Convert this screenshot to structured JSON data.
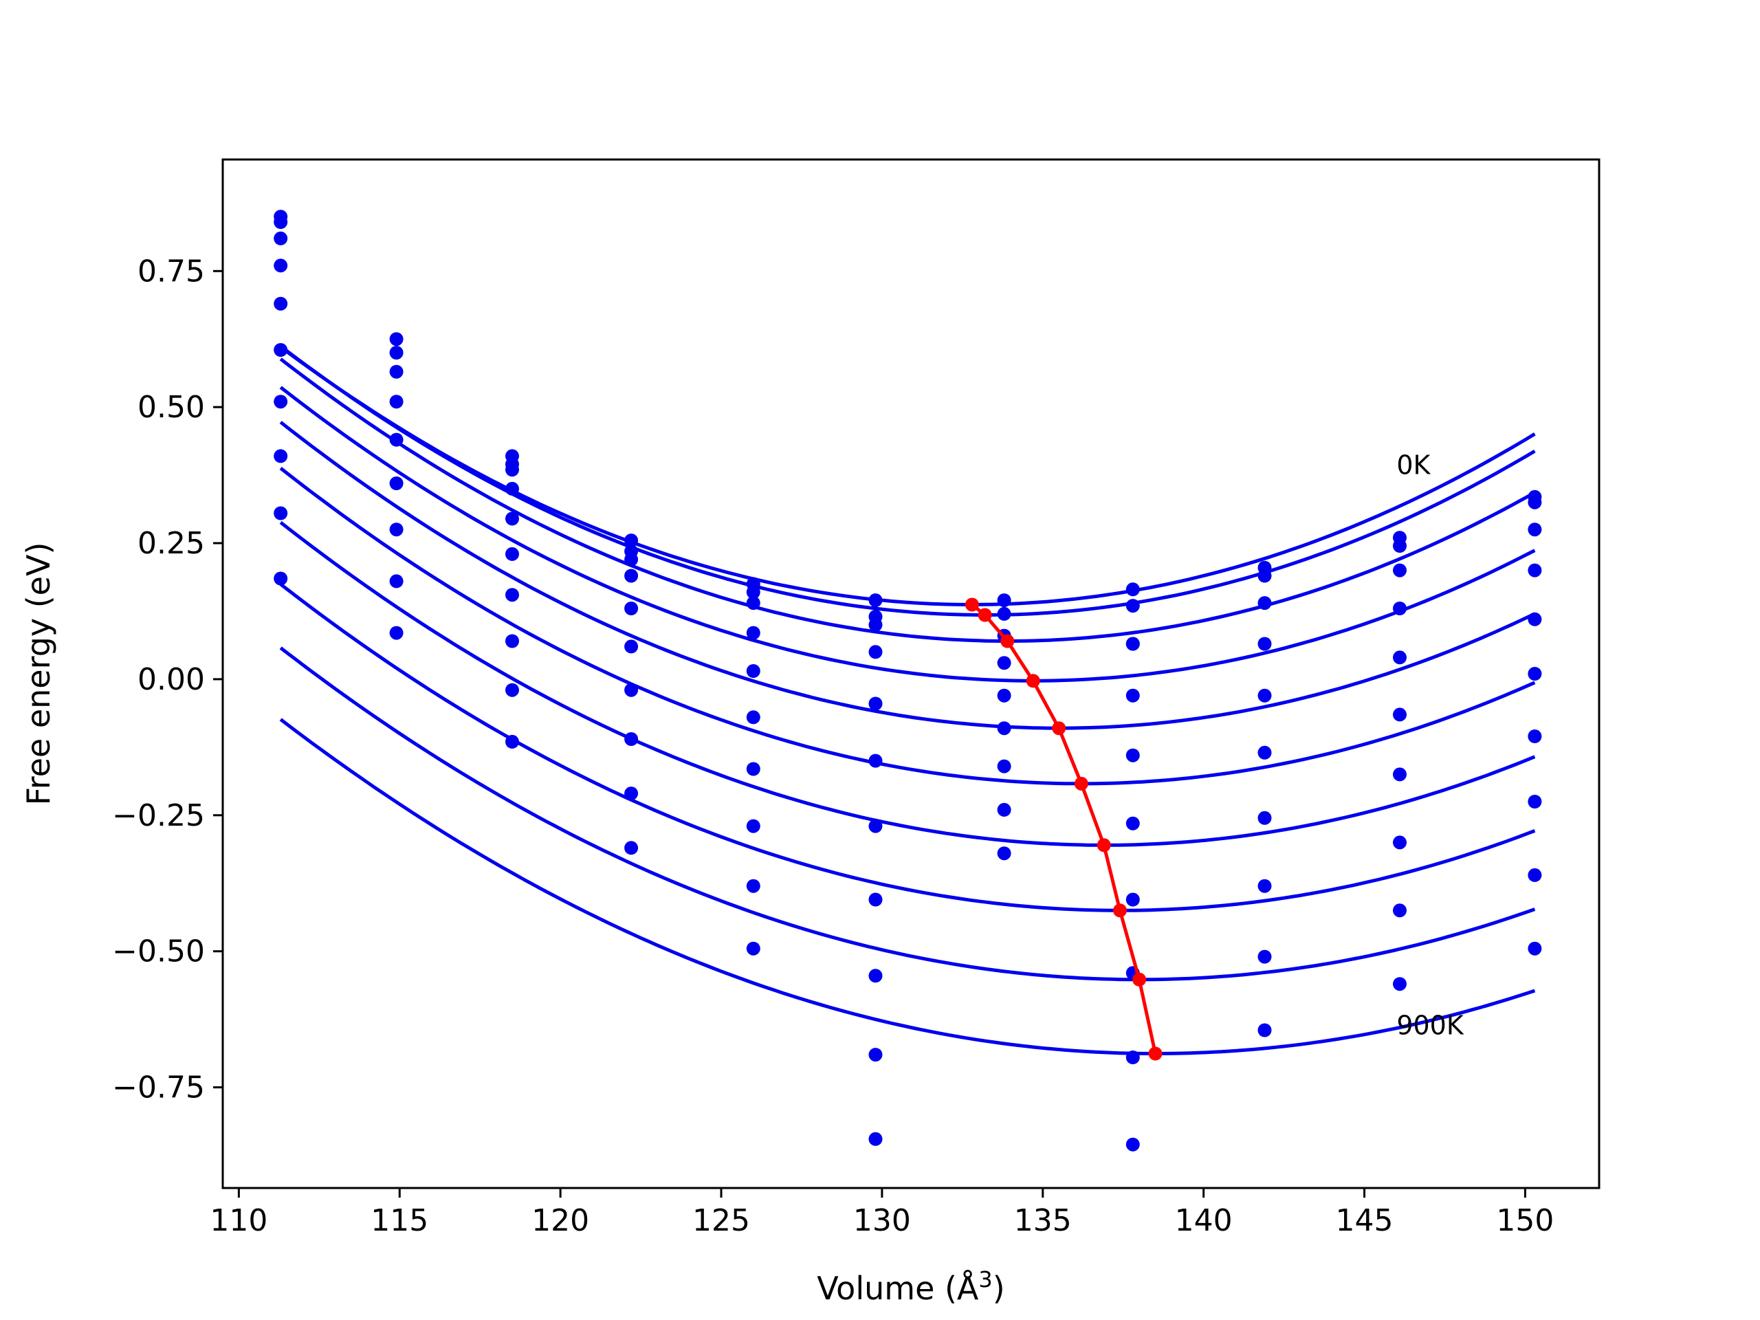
{
  "chart_data": {
    "type": "scatter",
    "xlabel": "Volume (Å",
    "xlabel_sup": "3",
    "xlabel_suffix": ")",
    "ylabel": "Free energy (eV)",
    "xlim": [
      109.5,
      152.3
    ],
    "ylim": [
      -0.935,
      0.955
    ],
    "xticks": [
      110,
      115,
      120,
      125,
      130,
      135,
      140,
      145,
      150
    ],
    "xtick_labels": [
      "110",
      "115",
      "120",
      "125",
      "130",
      "135",
      "140",
      "145",
      "150"
    ],
    "yticks": [
      0.75,
      0.5,
      0.25,
      0.0,
      -0.25,
      -0.5,
      -0.75
    ],
    "ytick_labels": [
      "0.75",
      "0.50",
      "0.25",
      "0.00",
      "−0.25",
      "−0.50",
      "−0.75"
    ],
    "grid": false,
    "legend": "none",
    "colors": {
      "series": "#0000ee",
      "minima": "#ff0000",
      "axes": "#000000"
    },
    "annotations": [
      {
        "text": "0K",
        "x": 146.0,
        "y": 0.395
      },
      {
        "text": "900K",
        "x": 146.0,
        "y": -0.635
      }
    ],
    "volumes": [
      111.3,
      114.9,
      118.5,
      122.2,
      126.0,
      129.8,
      133.8,
      137.8,
      141.9,
      146.1,
      150.3
    ],
    "series": [
      {
        "label": "0K",
        "values": [
          0.85,
          0.625,
          0.41,
          0.255,
          0.175,
          0.145,
          0.145,
          0.165,
          0.205,
          0.26,
          0.335
        ],
        "fit": {
          "a": 0.001024,
          "v0": 132.8,
          "e0": 0.137
        }
      },
      {
        "values": [
          0.84,
          0.6,
          0.395,
          0.235,
          0.16,
          0.115,
          0.12,
          0.135,
          0.19,
          0.245,
          0.325
        ],
        "fit": {
          "a": 0.00103,
          "v0": 133.2,
          "e0": 0.118
        }
      },
      {
        "values": [
          0.81,
          0.565,
          0.385,
          0.22,
          0.14,
          0.1,
          0.08,
          0.065,
          0.14,
          0.2,
          0.275
        ],
        "fit": {
          "a": 0.001015,
          "v0": 133.9,
          "e0": 0.07
        }
      },
      {
        "values": [
          0.76,
          0.51,
          0.35,
          0.19,
          0.085,
          0.05,
          0.03,
          0.065,
          0.065,
          0.13,
          0.2
        ],
        "fit": {
          "a": 0.000985,
          "v0": 134.7,
          "e0": -0.003
        }
      },
      {
        "values": [
          0.69,
          0.44,
          0.295,
          0.13,
          0.015,
          -0.045,
          -0.03,
          -0.03,
          -0.03,
          0.04,
          0.11
        ],
        "fit": {
          "a": 0.00096,
          "v0": 135.5,
          "e0": -0.09
        }
      },
      {
        "values": [
          0.605,
          0.36,
          0.23,
          0.06,
          -0.07,
          -0.15,
          -0.09,
          -0.14,
          -0.135,
          -0.065,
          0.01
        ],
        "fit": {
          "a": 0.000935,
          "v0": 136.2,
          "e0": -0.192
        }
      },
      {
        "values": [
          0.51,
          0.275,
          0.155,
          -0.02,
          -0.165,
          -0.27,
          -0.16,
          -0.265,
          -0.255,
          -0.175,
          -0.105
        ],
        "fit": {
          "a": 0.000905,
          "v0": 136.9,
          "e0": -0.305
        }
      },
      {
        "values": [
          0.41,
          0.18,
          0.07,
          -0.11,
          -0.27,
          -0.405,
          -0.24,
          -0.405,
          -0.38,
          -0.3,
          -0.225
        ],
        "fit": {
          "a": 0.00088,
          "v0": 137.4,
          "e0": -0.425
        }
      },
      {
        "values": [
          0.305,
          0.085,
          -0.02,
          -0.21,
          -0.38,
          -0.545,
          -0.32,
          -0.54,
          -0.51,
          -0.425,
          -0.36
        ],
        "fit": {
          "a": 0.000855,
          "v0": 138.0,
          "e0": -0.552
        }
      },
      {
        "label": "900K",
        "values": [
          0.185,
          null,
          -0.115,
          -0.31,
          -0.495,
          -0.69,
          null,
          -0.695,
          -0.645,
          -0.56,
          -0.495
        ],
        "fit": {
          "a": 0.00083,
          "v0": 138.5,
          "e0": -0.688
        }
      }
    ],
    "extra_points": [
      {
        "x": 129.8,
        "y": -0.845
      },
      {
        "x": 137.8,
        "y": -0.855
      }
    ],
    "minima": {
      "x": [
        132.8,
        133.2,
        133.9,
        134.7,
        135.5,
        136.2,
        136.9,
        137.4,
        138.0,
        138.5
      ],
      "y": [
        0.137,
        0.118,
        0.07,
        -0.003,
        -0.09,
        -0.192,
        -0.305,
        -0.425,
        -0.552,
        -0.688
      ]
    }
  }
}
